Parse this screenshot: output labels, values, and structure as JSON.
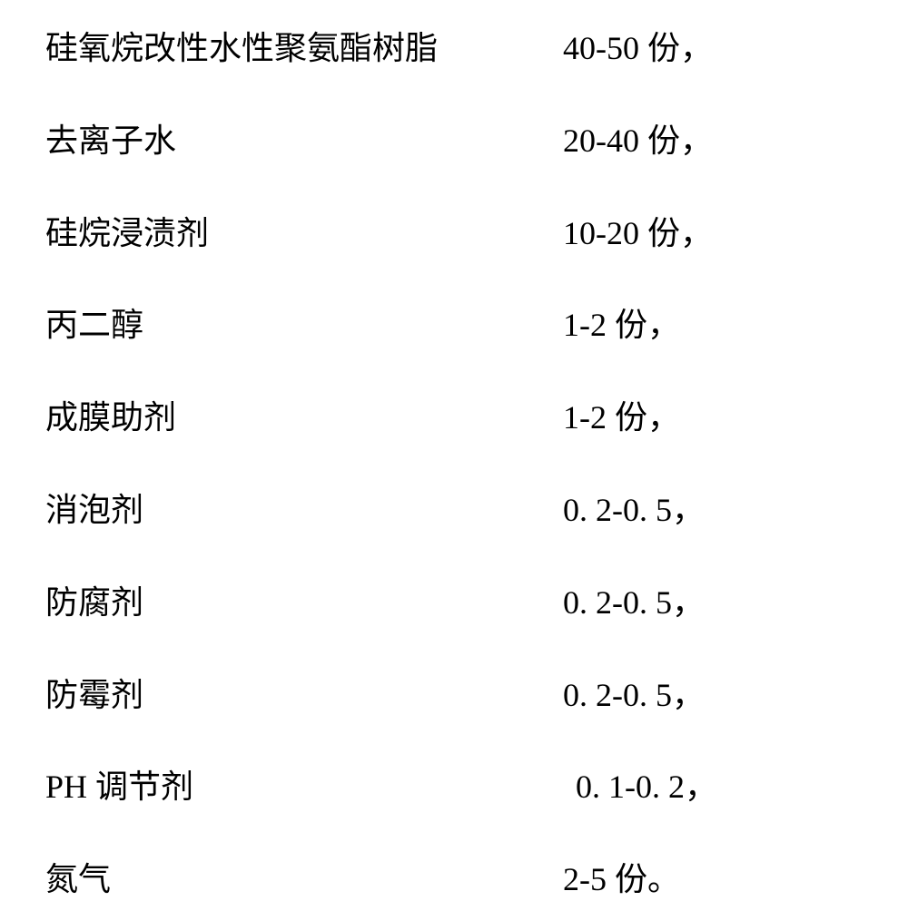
{
  "composition": {
    "rows": [
      {
        "ingredient": "硅氧烷改性水性聚氨酯树脂",
        "amount": "40-50 份，",
        "indent": false
      },
      {
        "ingredient": "去离子水",
        "amount": "20-40 份，",
        "indent": false
      },
      {
        "ingredient": "硅烷浸渍剂",
        "amount": "10-20 份，",
        "indent": false
      },
      {
        "ingredient": "丙二醇",
        "amount": "1-2 份，",
        "indent": false
      },
      {
        "ingredient": "成膜助剂",
        "amount": "1-2 份，",
        "indent": false
      },
      {
        "ingredient": "消泡剂",
        "amount": "0. 2-0. 5，",
        "indent": false
      },
      {
        "ingredient": "防腐剂",
        "amount": "0. 2-0. 5，",
        "indent": false
      },
      {
        "ingredient": "防霉剂",
        "amount": "0. 2-0. 5，",
        "indent": false
      },
      {
        "ingredient": "PH 调节剂",
        "amount": "0. 1-0. 2，",
        "indent": true
      },
      {
        "ingredient": "氮气",
        "amount": "2-5 份。",
        "indent": false
      }
    ]
  },
  "styling": {
    "background_color": "#ffffff",
    "text_color": "#000000",
    "font_size": 36,
    "font_family": "SimSun",
    "row_spacing": 55,
    "ingredient_col_width": 570
  }
}
